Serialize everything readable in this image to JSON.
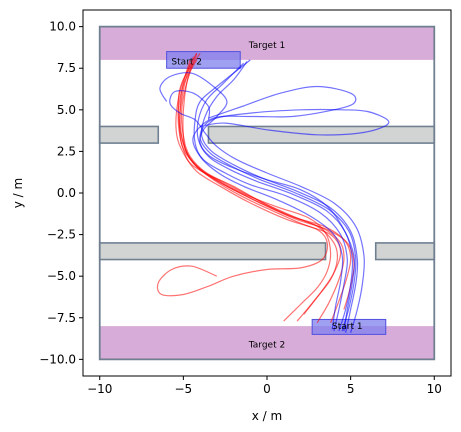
{
  "chart_data": {
    "type": "line",
    "title": "",
    "xlabel": "x / m",
    "ylabel": "y / m",
    "xlim": [
      -11,
      11
    ],
    "ylim": [
      -11,
      11
    ],
    "xticks": [
      -10,
      -5,
      0,
      5,
      10
    ],
    "yticks": [
      -10.0,
      -7.5,
      -5.0,
      -2.5,
      0.0,
      2.5,
      5.0,
      7.5,
      10.0
    ],
    "xtick_labels": [
      "−10",
      "−5",
      "0",
      "5",
      "10"
    ],
    "ytick_labels": [
      "−10.0",
      "−7.5",
      "−5.0",
      "−2.5",
      "0.0",
      "2.5",
      "5.0",
      "7.5",
      "10.0"
    ],
    "grid": false,
    "colors": {
      "arena": "#708090",
      "target": "#d8acd8",
      "start": "#8080ee",
      "obstacle": "#d2d3d3",
      "series_red": "#ff0000",
      "series_blue": "#0000ff"
    },
    "arena": {
      "x": [
        -10,
        10
      ],
      "y": [
        -10,
        10
      ]
    },
    "targets": [
      {
        "label": "Target 1",
        "x": [
          -10,
          10
        ],
        "y": [
          8,
          10
        ],
        "label_at": [
          0,
          8.9
        ]
      },
      {
        "label": "Target 2",
        "x": [
          -10,
          10
        ],
        "y": [
          -10,
          -8
        ],
        "label_at": [
          0,
          -9.1
        ]
      }
    ],
    "starts": [
      {
        "label": "Start 1",
        "x": [
          2.7,
          7.1
        ],
        "y": [
          -8.5,
          -7.6
        ],
        "label_at": [
          4.8,
          -8.0
        ]
      },
      {
        "label": "Start 2",
        "x": [
          -6.0,
          -1.6
        ],
        "y": [
          7.5,
          8.5
        ],
        "label_at": [
          -4.8,
          7.9
        ]
      }
    ],
    "obstacles": [
      {
        "x": [
          -10,
          -6.5
        ],
        "y": [
          3.0,
          4.0
        ]
      },
      {
        "x": [
          -3.5,
          10
        ],
        "y": [
          3.0,
          4.0
        ]
      },
      {
        "x": [
          -10,
          3.5
        ],
        "y": [
          -4.0,
          -3.0
        ]
      },
      {
        "x": [
          6.5,
          10
        ],
        "y": [
          -4.0,
          -3.0
        ]
      }
    ],
    "series": [
      {
        "color": "red",
        "traces": [
          [
            [
              1.0,
              -7.7
            ],
            [
              2.0,
              -6.7
            ],
            [
              3.0,
              -5.7
            ],
            [
              3.6,
              -4.7
            ],
            [
              3.8,
              -3.6
            ],
            [
              3.5,
              -2.4
            ],
            [
              2.5,
              -1.5
            ],
            [
              0.5,
              -0.8
            ],
            [
              -1.5,
              0.0
            ],
            [
              -3.0,
              0.8
            ],
            [
              -4.5,
              1.7
            ],
            [
              -5.0,
              2.6
            ],
            [
              -5.2,
              3.5
            ],
            [
              -5.2,
              5.0
            ],
            [
              -5.0,
              6.5
            ],
            [
              -4.2,
              8.0
            ]
          ],
          [
            [
              1.8,
              -7.7
            ],
            [
              2.8,
              -6.5
            ],
            [
              3.8,
              -5.2
            ],
            [
              4.2,
              -4.0
            ],
            [
              4.0,
              -3.0
            ],
            [
              3.0,
              -2.0
            ],
            [
              1.0,
              -1.2
            ],
            [
              -0.8,
              -0.3
            ],
            [
              -2.5,
              0.6
            ],
            [
              -4.0,
              1.4
            ],
            [
              -4.8,
              2.4
            ],
            [
              -5.0,
              3.5
            ],
            [
              -5.0,
              5.0
            ],
            [
              -4.8,
              6.6
            ],
            [
              -4.4,
              8.2
            ]
          ],
          [
            [
              3.0,
              -7.8
            ],
            [
              3.7,
              -6.6
            ],
            [
              4.3,
              -5.2
            ],
            [
              4.6,
              -4.0
            ],
            [
              4.4,
              -3.0
            ],
            [
              3.5,
              -2.2
            ],
            [
              1.8,
              -1.5
            ],
            [
              -0.2,
              -0.6
            ],
            [
              -2.0,
              0.4
            ],
            [
              -3.6,
              1.2
            ],
            [
              -4.6,
              2.2
            ],
            [
              -5.0,
              3.4
            ],
            [
              -5.1,
              5.0
            ],
            [
              -4.8,
              6.6
            ],
            [
              -4.2,
              8.4
            ]
          ],
          [
            [
              3.8,
              -7.8
            ],
            [
              4.3,
              -6.5
            ],
            [
              4.8,
              -5.0
            ],
            [
              5.0,
              -3.8
            ],
            [
              4.6,
              -2.8
            ],
            [
              3.4,
              -2.0
            ],
            [
              1.4,
              -1.4
            ],
            [
              -0.6,
              -0.5
            ],
            [
              -2.4,
              0.4
            ],
            [
              -3.8,
              1.3
            ],
            [
              -4.8,
              2.3
            ],
            [
              -5.2,
              3.4
            ],
            [
              -5.3,
              5.0
            ],
            [
              -5.0,
              6.6
            ],
            [
              -4.6,
              8.0
            ]
          ],
          [
            [
              4.6,
              -7.0
            ],
            [
              5.0,
              -5.6
            ],
            [
              5.2,
              -4.2
            ],
            [
              4.8,
              -3.0
            ],
            [
              3.6,
              -2.2
            ],
            [
              1.8,
              -1.6
            ],
            [
              0.0,
              -0.8
            ],
            [
              -2.0,
              0.2
            ],
            [
              -3.6,
              1.1
            ],
            [
              -4.6,
              2.1
            ],
            [
              -5.1,
              3.3
            ],
            [
              -5.3,
              5.0
            ],
            [
              -5.1,
              6.6
            ],
            [
              -4.0,
              8.4
            ]
          ],
          [
            [
              -3.0,
              -5.0
            ],
            [
              -4.5,
              -4.4
            ],
            [
              -5.7,
              -4.6
            ],
            [
              -6.5,
              -5.4
            ],
            [
              -6.3,
              -6.1
            ],
            [
              -5.0,
              -6.1
            ],
            [
              -3.5,
              -5.6
            ],
            [
              -2.0,
              -5.0
            ],
            [
              0.0,
              -4.6
            ],
            [
              2.0,
              -4.5
            ],
            [
              3.3,
              -4.0
            ],
            [
              3.6,
              -3.0
            ],
            [
              3.0,
              -2.2
            ],
            [
              1.2,
              -1.6
            ],
            [
              -1.0,
              -0.6
            ],
            [
              -2.8,
              0.4
            ],
            [
              -4.2,
              1.3
            ],
            [
              -5.0,
              2.4
            ],
            [
              -5.4,
              3.5
            ],
            [
              -5.4,
              5.0
            ],
            [
              -5.0,
              6.8
            ],
            [
              -4.2,
              8.4
            ]
          ],
          [
            [
              2.2,
              -7.3
            ],
            [
              3.2,
              -6.0
            ],
            [
              4.0,
              -4.8
            ],
            [
              4.4,
              -3.5
            ],
            [
              3.8,
              -2.5
            ],
            [
              2.2,
              -1.9
            ],
            [
              0.4,
              -1.1
            ],
            [
              -1.5,
              -0.2
            ],
            [
              -3.2,
              0.8
            ],
            [
              -4.4,
              1.8
            ],
            [
              -5.0,
              3.0
            ],
            [
              -5.2,
              4.6
            ],
            [
              -5.0,
              6.2
            ],
            [
              -4.6,
              7.8
            ]
          ]
        ]
      },
      {
        "color": "blue",
        "traces": [
          [
            [
              4.0,
              -8.3
            ],
            [
              4.3,
              -7.0
            ],
            [
              4.6,
              -5.5
            ],
            [
              4.8,
              -4.0
            ],
            [
              4.4,
              -2.5
            ],
            [
              3.2,
              -1.2
            ],
            [
              1.2,
              -0.2
            ],
            [
              -1.0,
              0.5
            ],
            [
              -2.5,
              1.2
            ],
            [
              -3.8,
              2.0
            ],
            [
              -4.3,
              3.0
            ],
            [
              -4.3,
              4.4
            ],
            [
              -4.0,
              5.5
            ],
            [
              -3.0,
              6.4
            ],
            [
              -1.0,
              8.0
            ]
          ],
          [
            [
              4.3,
              -8.3
            ],
            [
              4.7,
              -7.0
            ],
            [
              5.0,
              -5.5
            ],
            [
              5.1,
              -4.0
            ],
            [
              4.7,
              -2.4
            ],
            [
              3.6,
              -1.1
            ],
            [
              1.6,
              -0.1
            ],
            [
              -0.6,
              0.7
            ],
            [
              -2.2,
              1.4
            ],
            [
              -3.5,
              2.2
            ],
            [
              -4.1,
              3.2
            ],
            [
              -4.1,
              4.4
            ],
            [
              -3.6,
              5.6
            ],
            [
              -2.6,
              6.6
            ],
            [
              -1.4,
              7.8
            ]
          ],
          [
            [
              4.7,
              -8.4
            ],
            [
              5.0,
              -7.0
            ],
            [
              5.3,
              -5.5
            ],
            [
              5.4,
              -4.0
            ],
            [
              5.0,
              -2.3
            ],
            [
              3.8,
              -0.9
            ],
            [
              1.8,
              0.1
            ],
            [
              -0.3,
              0.9
            ],
            [
              -2.0,
              1.7
            ],
            [
              -3.3,
              2.5
            ],
            [
              -3.9,
              3.4
            ],
            [
              -3.7,
              4.6
            ],
            [
              -3.0,
              5.8
            ],
            [
              -2.0,
              6.8
            ],
            [
              -1.2,
              7.9
            ]
          ],
          [
            [
              5.0,
              -8.4
            ],
            [
              5.4,
              -7.0
            ],
            [
              5.7,
              -5.5
            ],
            [
              5.8,
              -3.8
            ],
            [
              5.3,
              -2.0
            ],
            [
              4.0,
              -0.6
            ],
            [
              2.0,
              0.4
            ],
            [
              0.0,
              1.2
            ],
            [
              -1.8,
              2.0
            ],
            [
              -3.0,
              2.8
            ],
            [
              -3.7,
              3.6
            ],
            [
              -4.3,
              4.4
            ],
            [
              -5.2,
              4.8
            ],
            [
              -5.8,
              5.4
            ],
            [
              -5.5,
              6.1
            ],
            [
              -4.4,
              6.0
            ],
            [
              -3.5,
              5.2
            ],
            [
              -3.5,
              4.4
            ]
          ],
          [
            [
              3.9,
              -8.2
            ],
            [
              4.1,
              -6.8
            ],
            [
              4.4,
              -5.3
            ],
            [
              4.5,
              -3.8
            ],
            [
              4.0,
              -2.5
            ],
            [
              2.6,
              -1.4
            ],
            [
              0.6,
              -0.4
            ],
            [
              -1.4,
              0.4
            ],
            [
              -2.9,
              1.2
            ],
            [
              -4.0,
              2.2
            ],
            [
              -4.4,
              3.4
            ],
            [
              -3.2,
              4.5
            ],
            [
              -1.0,
              4.6
            ],
            [
              1.5,
              4.6
            ],
            [
              4.0,
              5.0
            ],
            [
              5.2,
              5.4
            ],
            [
              5.0,
              6.0
            ],
            [
              3.0,
              6.4
            ],
            [
              0.8,
              6.0
            ],
            [
              -1.5,
              5.2
            ],
            [
              -3.5,
              4.5
            ]
          ],
          [
            [
              4.5,
              -8.3
            ],
            [
              4.9,
              -6.9
            ],
            [
              5.2,
              -5.4
            ],
            [
              5.3,
              -3.9
            ],
            [
              4.9,
              -2.3
            ],
            [
              3.7,
              -1.0
            ],
            [
              1.7,
              0.0
            ],
            [
              -0.4,
              0.8
            ],
            [
              -2.1,
              1.6
            ],
            [
              -3.4,
              2.4
            ],
            [
              -4.0,
              3.4
            ],
            [
              -3.3,
              4.4
            ],
            [
              -1.0,
              4.8
            ],
            [
              2.0,
              5.0
            ],
            [
              4.5,
              5.0
            ],
            [
              6.0,
              4.9
            ],
            [
              7.2,
              4.4
            ],
            [
              7.0,
              4.0
            ],
            [
              5.5,
              3.6
            ],
            [
              3.0,
              3.5
            ],
            [
              0.0,
              3.8
            ],
            [
              -2.5,
              4.2
            ],
            [
              -4.0,
              4.0
            ]
          ],
          [
            [
              -6.0,
              5.5
            ],
            [
              -6.4,
              6.3
            ],
            [
              -5.8,
              7.0
            ],
            [
              -4.5,
              7.2
            ],
            [
              -3.2,
              6.4
            ],
            [
              -2.4,
              5.5
            ],
            [
              -3.0,
              4.6
            ],
            [
              -3.8,
              3.8
            ],
            [
              -4.0,
              3.0
            ],
            [
              -3.4,
              2.2
            ],
            [
              -2.0,
              1.5
            ],
            [
              0.0,
              0.8
            ],
            [
              2.0,
              0.2
            ],
            [
              3.6,
              -0.8
            ],
            [
              4.6,
              -2.2
            ],
            [
              5.2,
              -3.8
            ],
            [
              5.1,
              -5.4
            ],
            [
              4.8,
              -7.0
            ],
            [
              4.6,
              -8.3
            ]
          ]
        ]
      }
    ]
  },
  "labels": {
    "target_1": "Target 1",
    "target_2": "Target 2",
    "start_1": "Start 1",
    "start_2": "Start 2"
  }
}
